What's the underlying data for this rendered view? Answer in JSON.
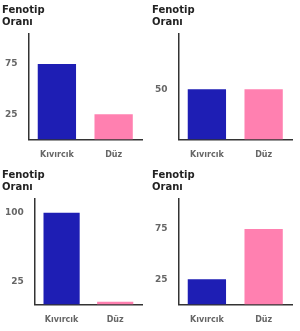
{
  "chart_data": [
    {
      "type": "bar",
      "title": "Fenotip\nOranı",
      "categories": [
        "Kıvırcık",
        "Düz"
      ],
      "values": [
        75,
        25
      ],
      "colors": [
        "#1e1eb4",
        "#ff80b0"
      ],
      "ylim": [
        0,
        105
      ],
      "yticks": [
        25,
        75
      ],
      "grid": false
    },
    {
      "type": "bar",
      "title": "Fenotip\nOranı",
      "categories": [
        "Kıvırcık",
        "Düz"
      ],
      "values": [
        50,
        50
      ],
      "colors": [
        "#1e1eb4",
        "#ff80b0"
      ],
      "ylim": [
        0,
        105
      ],
      "yticks": [
        50
      ],
      "grid": false
    },
    {
      "type": "bar",
      "title": "Fenotip\nOranı",
      "categories": [
        "Kıvırcık",
        "Düz"
      ],
      "values": [
        100,
        3
      ],
      "colors": [
        "#1e1eb4",
        "#ff80b0"
      ],
      "ylim": [
        0,
        115
      ],
      "yticks": [
        25,
        100
      ],
      "grid": false
    },
    {
      "type": "bar",
      "title": "Fenotip\nOranı",
      "categories": [
        "Kıvırcık",
        "Düz"
      ],
      "values": [
        25,
        75
      ],
      "colors": [
        "#1e1eb4",
        "#ff80b0"
      ],
      "ylim": [
        0,
        105
      ],
      "yticks": [
        25,
        75
      ],
      "grid": false
    }
  ]
}
